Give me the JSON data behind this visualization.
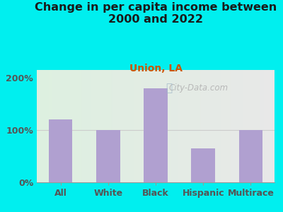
{
  "title": "Change in per capita income between\n2000 and 2022",
  "subtitle": "Union, LA",
  "categories": [
    "All",
    "White",
    "Black",
    "Hispanic",
    "Multirace"
  ],
  "values": [
    120,
    100,
    180,
    65,
    100
  ],
  "bar_color": "#b0a0d0",
  "background_outer": "#00efef",
  "background_inner_left": "#ddf0e0",
  "background_inner_right": "#e8e8e8",
  "title_color": "#1a1a1a",
  "subtitle_color": "#cc5500",
  "ytick_labels": [
    "0%",
    "100%",
    "200%"
  ],
  "ytick_values": [
    0,
    100,
    200
  ],
  "ylim": [
    0,
    215
  ],
  "ylabel_color": "#555555",
  "xlabel_color": "#555555",
  "watermark": "City-Data.com",
  "hline_color": "#cccccc",
  "title_fontsize": 11.5,
  "subtitle_fontsize": 10,
  "tick_fontsize": 9,
  "bar_width": 0.5
}
